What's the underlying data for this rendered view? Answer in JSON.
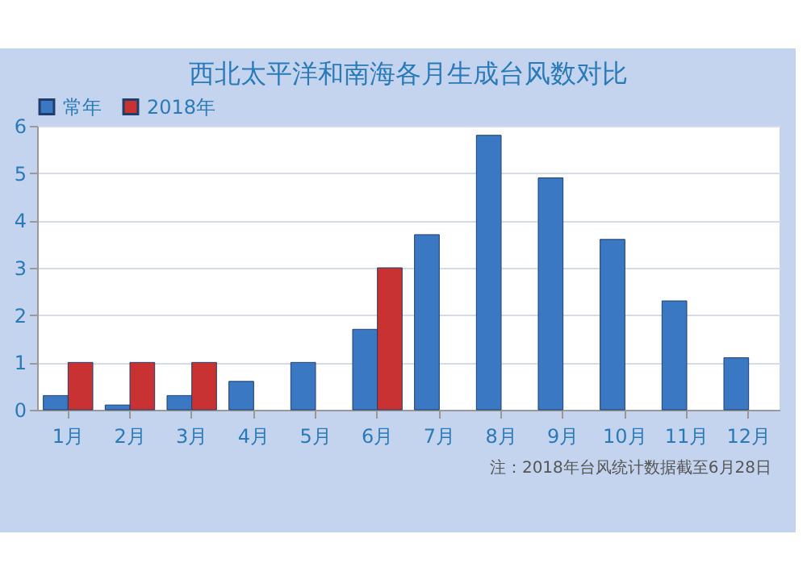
{
  "chart_data": {
    "type": "bar",
    "title": "西北太平洋和南海各月生成台风数对比",
    "categories": [
      "1月",
      "2月",
      "3月",
      "4月",
      "5月",
      "6月",
      "7月",
      "8月",
      "9月",
      "10月",
      "11月",
      "12月"
    ],
    "series": [
      {
        "name": "常年",
        "color": "#3a78c4",
        "values": [
          0.3,
          0.1,
          0.3,
          0.6,
          1.0,
          1.7,
          3.7,
          5.8,
          4.9,
          3.6,
          2.3,
          1.1
        ]
      },
      {
        "name": "2018年",
        "color": "#c83232",
        "values": [
          1,
          1,
          1,
          null,
          null,
          3,
          null,
          null,
          null,
          null,
          null,
          null
        ]
      }
    ],
    "ylim": [
      0,
      6
    ],
    "yticks": [
      0,
      1,
      2,
      3,
      4,
      5,
      6
    ],
    "grid": "y",
    "legend": "top",
    "annotations": [
      "注：2018年台风统计数据截至6月28日"
    ]
  }
}
